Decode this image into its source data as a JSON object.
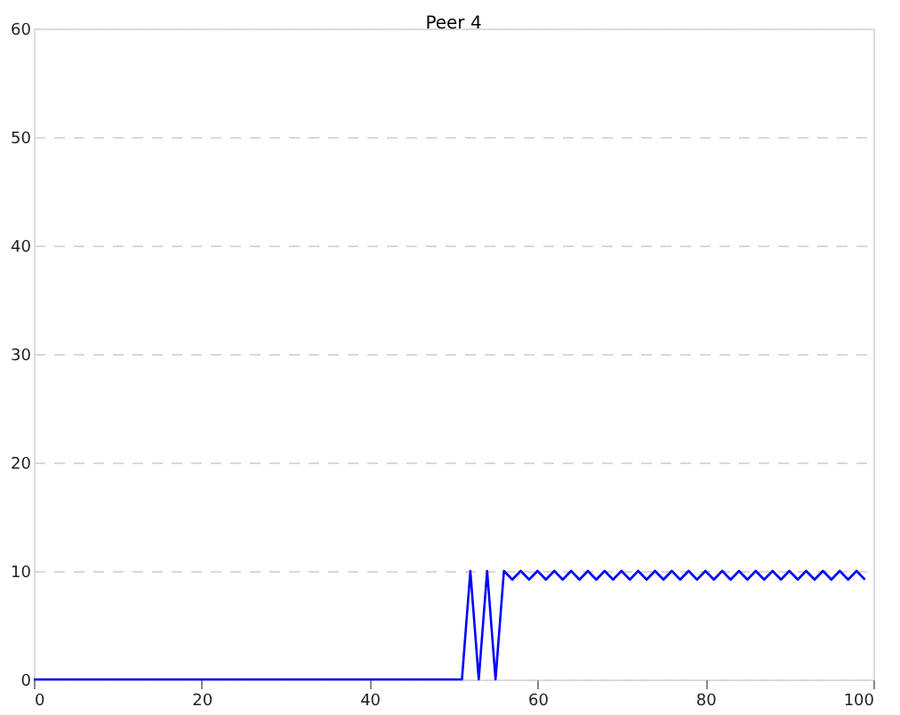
{
  "chart_data": {
    "type": "line",
    "title": "Peer 4",
    "x": [
      0,
      1,
      2,
      3,
      4,
      5,
      6,
      7,
      8,
      9,
      10,
      11,
      12,
      13,
      14,
      15,
      16,
      17,
      18,
      19,
      20,
      21,
      22,
      23,
      24,
      25,
      26,
      27,
      28,
      29,
      30,
      31,
      32,
      33,
      34,
      35,
      36,
      37,
      38,
      39,
      40,
      41,
      42,
      43,
      44,
      45,
      46,
      47,
      48,
      49,
      50,
      51,
      52,
      53,
      54,
      55,
      56,
      57,
      58,
      59,
      60,
      61,
      62,
      63,
      64,
      65,
      66,
      67,
      68,
      69,
      70,
      71,
      72,
      73,
      74,
      75,
      76,
      77,
      78,
      79,
      80,
      81,
      82,
      83,
      84,
      85,
      86,
      87,
      88,
      89,
      90,
      91,
      92,
      93,
      94,
      95,
      96,
      97,
      98,
      99
    ],
    "series": [
      {
        "color": "#0000ff",
        "values": [
          0,
          0,
          0,
          0,
          0,
          0,
          0,
          0,
          0,
          0,
          0,
          0,
          0,
          0,
          0,
          0,
          0,
          0,
          0,
          0,
          0,
          0,
          0,
          0,
          0,
          0,
          0,
          0,
          0,
          0,
          0,
          0,
          0,
          0,
          0,
          0,
          0,
          0,
          0,
          0,
          0,
          0,
          0,
          0,
          0,
          0,
          0,
          0,
          0,
          0,
          0,
          0,
          10,
          0,
          10,
          0,
          10,
          9.2,
          10,
          9.2,
          10,
          9.2,
          10,
          9.2,
          10,
          9.2,
          10,
          9.2,
          10,
          9.2,
          10,
          9.2,
          10,
          9.2,
          10,
          9.2,
          10,
          9.2,
          10,
          9.2,
          10,
          9.2,
          10,
          9.2,
          10,
          9.2,
          10,
          9.2,
          10,
          9.2,
          10,
          9.2,
          10,
          9.2,
          10,
          9.2,
          10,
          9.2,
          10,
          9.2
        ]
      }
    ],
    "xlim": [
      0,
      100
    ],
    "xticks": [
      0,
      20,
      40,
      60,
      80,
      100
    ],
    "ylim": [
      0,
      60
    ],
    "yticks": [
      0,
      10,
      20,
      30,
      40,
      50,
      60
    ],
    "grid": "y",
    "legend": false,
    "marker": "none",
    "line_style": "solid"
  }
}
